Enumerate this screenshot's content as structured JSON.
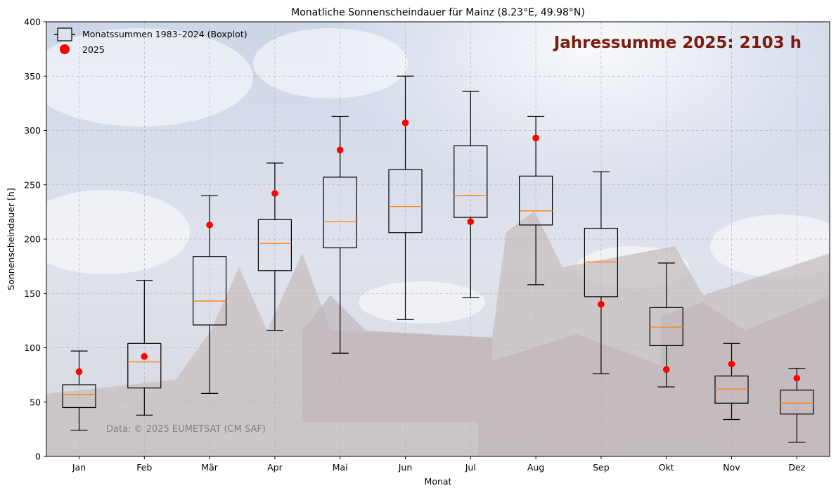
{
  "chart_data": {
    "type": "box",
    "title": "Monatliche Sonnenscheindauer für Mainz (8.23°E, 49.98°N)",
    "xlabel": "Monat",
    "ylabel": "Sonnenscheindauer [h]",
    "ylim": [
      0,
      400
    ],
    "yticks": [
      0,
      50,
      100,
      150,
      200,
      250,
      300,
      350,
      400
    ],
    "grid": true,
    "legend_position": "top-left",
    "categories": [
      "Jan",
      "Feb",
      "Mär",
      "Apr",
      "Mai",
      "Jun",
      "Jul",
      "Aug",
      "Sep",
      "Okt",
      "Nov",
      "Dez"
    ],
    "box_series": {
      "name": "Monatssummen 1983–2024 (Boxplot)",
      "whisker_low": [
        24,
        38,
        58,
        116,
        95,
        126,
        146,
        158,
        76,
        64,
        34,
        13
      ],
      "q1": [
        45,
        63,
        121,
        171,
        192,
        206,
        220,
        213,
        147,
        102,
        49,
        39
      ],
      "median": [
        57,
        87,
        143,
        196,
        216,
        230,
        240,
        226,
        179,
        119,
        62,
        49
      ],
      "q3": [
        66,
        104,
        184,
        218,
        257,
        264,
        286,
        258,
        210,
        137,
        74,
        61
      ],
      "whisker_high": [
        97,
        162,
        240,
        270,
        313,
        350,
        336,
        313,
        262,
        178,
        104,
        81
      ]
    },
    "point_series": {
      "name": "2025",
      "values": [
        78,
        92,
        213,
        242,
        282,
        307,
        216,
        293,
        140,
        80,
        85,
        72
      ]
    },
    "annotation": "Jahressumme 2025: 2103 h",
    "footnote": "Data: © 2025 EUMETSAT (CM SAF)",
    "colors": {
      "box": "#000000",
      "median": "#ff7f0e",
      "point": "#ff0000",
      "annotation": "#7b1a0e",
      "footnote": "#808080",
      "grid": "#b0b0b0",
      "sky_top": "#cfd9ea",
      "sky_bottom": "#d7dae3",
      "building": "#c9bfc1"
    }
  }
}
